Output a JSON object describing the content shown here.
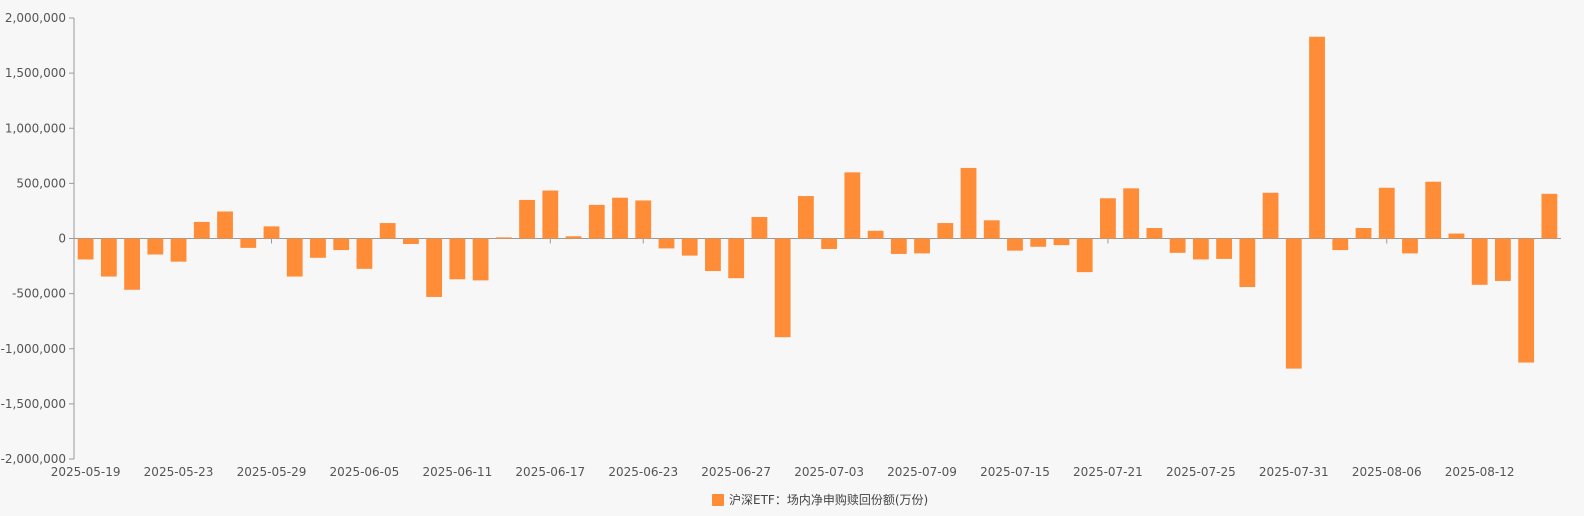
{
  "chart_data": {
    "type": "bar",
    "title": "",
    "xlabel": "",
    "ylabel": "",
    "ylim": [
      -2000000,
      2000000
    ],
    "yticks": [
      2000000,
      1500000,
      1000000,
      500000,
      0,
      -500000,
      -1000000,
      -1500000,
      -2000000
    ],
    "ytick_labels": [
      "2,000,000",
      "1,500,000",
      "1,000,000",
      "500,000",
      "0",
      "-500,000",
      "-1,000,000",
      "-1,500,000",
      "-2,000,000"
    ],
    "xtick_labels": [
      "2025-05-19",
      "2025-05-23",
      "2025-05-29",
      "2025-06-05",
      "2025-06-11",
      "2025-06-17",
      "2025-06-23",
      "2025-06-27",
      "2025-07-03",
      "2025-07-09",
      "2025-07-15",
      "2025-07-21",
      "2025-07-25",
      "2025-07-31",
      "2025-08-06",
      "2025-08-12"
    ],
    "xtick_every": 4,
    "grid": false,
    "legend": {
      "position": "bottom-center"
    },
    "series": [
      {
        "name": "沪深ETF：场内净申购赎回份额(万份)",
        "color": "#ff8c36",
        "values": [
          -190000,
          -345000,
          -465000,
          -145000,
          -210000,
          150000,
          245000,
          -85000,
          110000,
          -345000,
          -175000,
          -105000,
          -275000,
          140000,
          -50000,
          -530000,
          -370000,
          -380000,
          10000,
          350000,
          435000,
          20000,
          305000,
          370000,
          345000,
          -90000,
          -155000,
          -295000,
          -360000,
          195000,
          -895000,
          385000,
          -95000,
          600000,
          70000,
          -140000,
          -135000,
          140000,
          640000,
          165000,
          -110000,
          -75000,
          -60000,
          -305000,
          365000,
          455000,
          95000,
          -130000,
          -190000,
          -185000,
          -440000,
          415000,
          -1180000,
          1830000,
          -105000,
          95000,
          460000,
          -135000,
          515000,
          45000,
          -420000,
          -385000,
          -1125000,
          405000
        ]
      }
    ]
  }
}
